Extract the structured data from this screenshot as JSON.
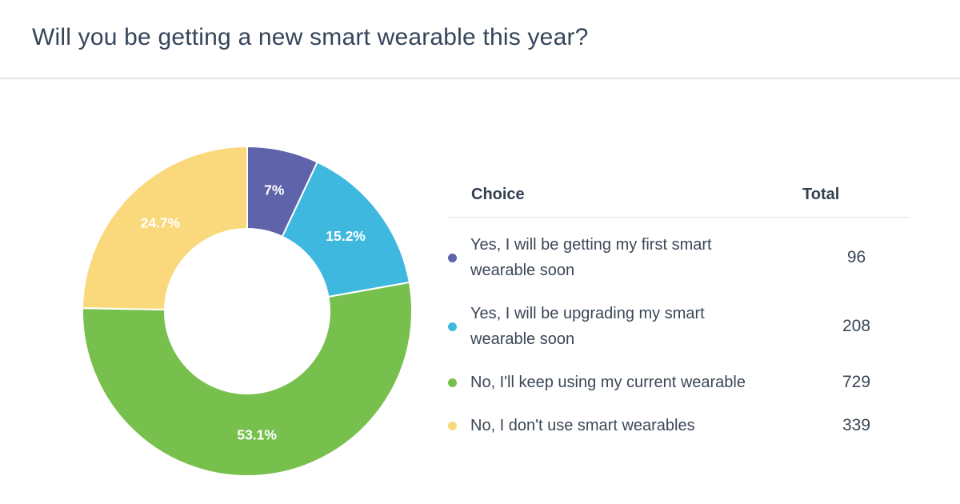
{
  "header": {
    "title": "Will you be getting a new smart wearable this year?"
  },
  "table": {
    "headers": {
      "choice": "Choice",
      "total": "Total"
    }
  },
  "chart_data": {
    "type": "pie",
    "variant": "donut",
    "title": "Will you be getting a new smart wearable this year?",
    "start_angle_deg": 0,
    "direction": "clockwise",
    "inner_radius_ratio": 0.5,
    "slice_label_color": "#ffffff",
    "slice_border_color": "#ffffff",
    "series": [
      {
        "label": "Yes, I will be getting my first smart wearable soon",
        "value": 96,
        "percent": 7,
        "percent_label": "7%",
        "color": "#5f64aa"
      },
      {
        "label": "Yes, I will be upgrading my smart wearable soon",
        "value": 208,
        "percent": 15.2,
        "percent_label": "15.2%",
        "color": "#3fb8e0"
      },
      {
        "label": "No, I'll keep using my current wearable",
        "value": 729,
        "percent": 53.1,
        "percent_label": "53.1%",
        "color": "#78c04d"
      },
      {
        "label": "No, I don't use smart wearables",
        "value": 339,
        "percent": 24.7,
        "percent_label": "24.7%",
        "color": "#fad87c"
      }
    ]
  }
}
